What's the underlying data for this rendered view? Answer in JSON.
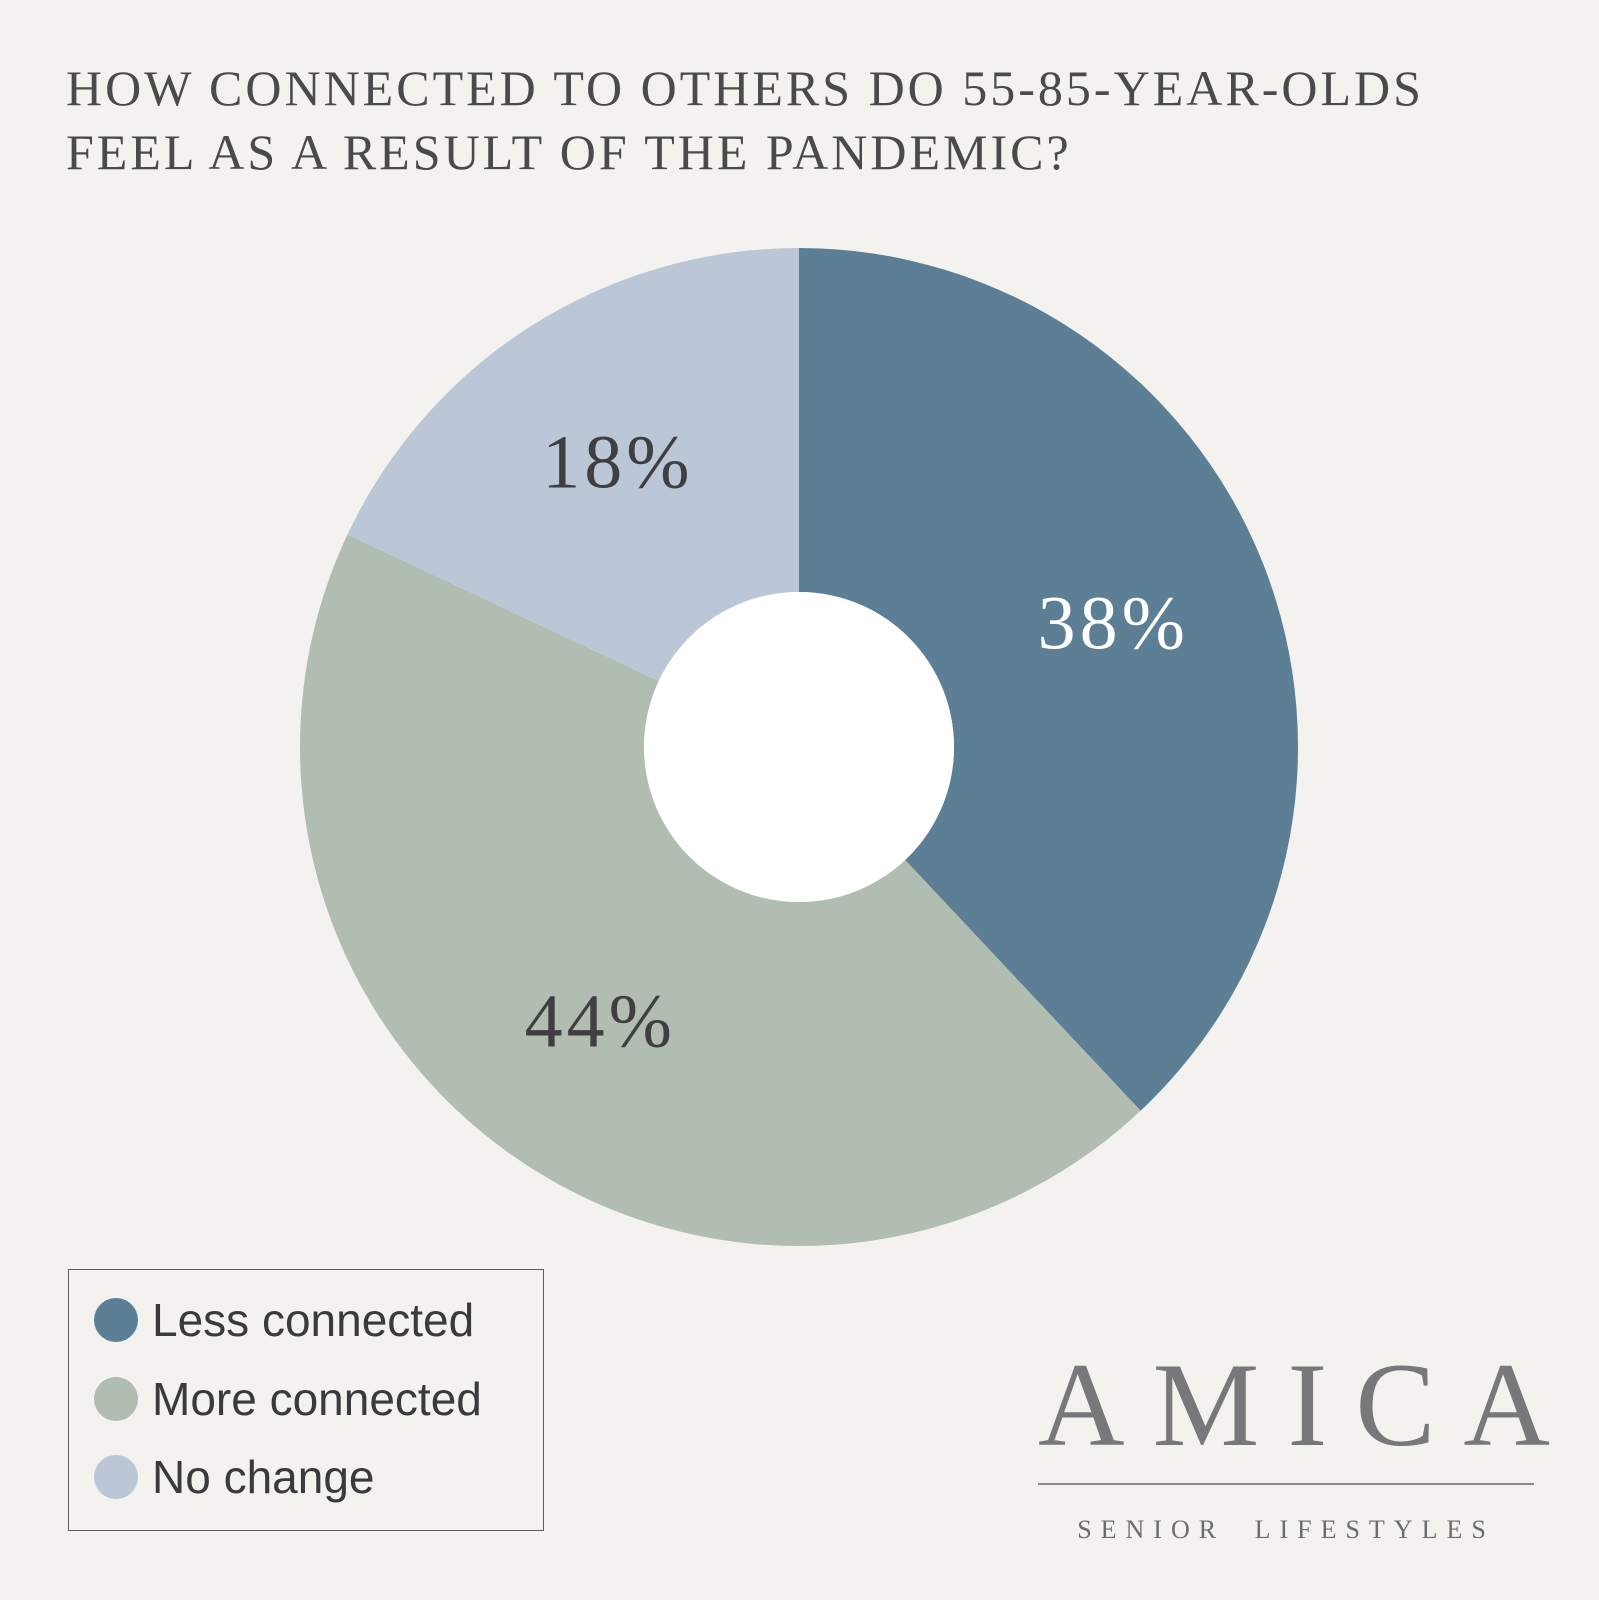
{
  "chart_data": {
    "type": "pie",
    "title_lines": [
      "HOW CONNECTED TO OTHERS DO 55-85-YEAR-OLDS",
      "FEEL AS A RESULT OF THE PANDEMIC?"
    ],
    "categories": [
      "Less connected",
      "More connected",
      "No change"
    ],
    "values": [
      38,
      44,
      18
    ],
    "data_labels": [
      "38%",
      "44%",
      "18%"
    ],
    "colors": [
      "#5d7f96",
      "#b2bdb1",
      "#bbc7d7"
    ],
    "label_colors": [
      "#ffffff",
      "#3f3f42",
      "#3f3f42"
    ],
    "hole": "donut",
    "start": "top, clockwise",
    "legend_position": "bottom-left"
  },
  "branding": {
    "logo_word": "AMICA",
    "tagline": "SENIOR LIFESTYLES"
  }
}
